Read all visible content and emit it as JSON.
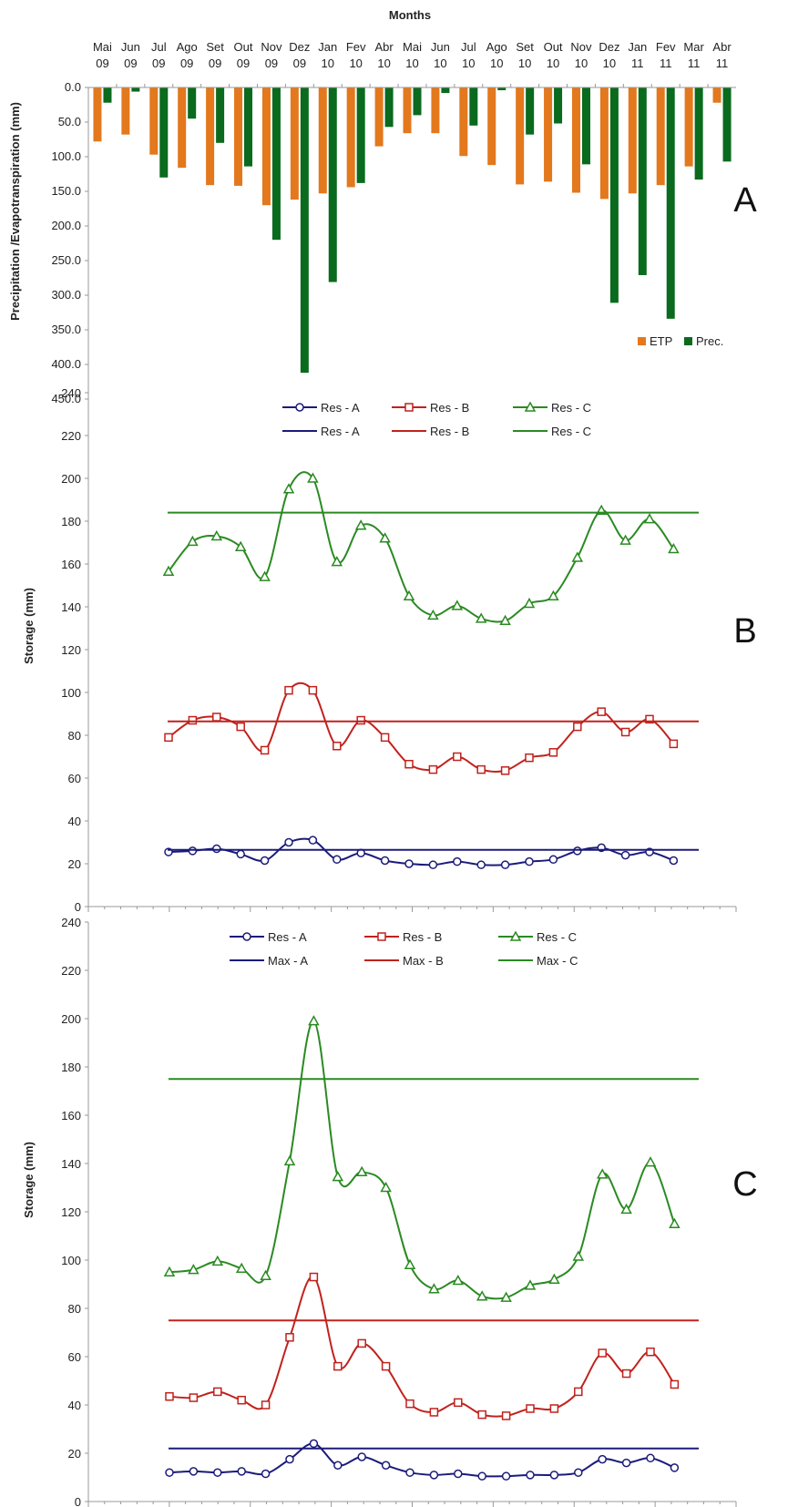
{
  "colors": {
    "etp": "#e3781d",
    "prec": "#0a6a1e",
    "resA": "#1b1b7a",
    "resB": "#c0221d",
    "resC": "#2a8a22",
    "axis": "#999999"
  },
  "chart_data": [
    {
      "type": "bar",
      "panel_label": "A",
      "title": "Months",
      "ylabel": "Precipitation /Evapotranspiration (mm)",
      "ylim": [
        0,
        450
      ],
      "y_inverted": true,
      "y_ticks": [
        "0.0",
        "50.0",
        "100.0",
        "150.0",
        "200.0",
        "250.0",
        "300.0",
        "350.0",
        "400.0",
        "450.0"
      ],
      "x_axis_position": "top",
      "categories": [
        "Mai 09",
        "Jun 09",
        "Jul 09",
        "Ago 09",
        "Set 09",
        "Out 09",
        "Nov 09",
        "Dez 09",
        "Jan 10",
        "Fev 10",
        "Abr 10",
        "Mai 10",
        "Jun 10",
        "Jul 10",
        "Ago 10",
        "Set 10",
        "Out 10",
        "Nov 10",
        "Dez 10",
        "Jan 11",
        "Fev 11",
        "Mar 11",
        "Abr 11"
      ],
      "category_lines": [
        [
          "Mai",
          "09"
        ],
        [
          "Jun",
          "09"
        ],
        [
          "Jul",
          "09"
        ],
        [
          "Ago",
          "09"
        ],
        [
          "Set",
          "09"
        ],
        [
          "Out",
          "09"
        ],
        [
          "Nov",
          "09"
        ],
        [
          "Dez",
          "09"
        ],
        [
          "Jan",
          "10"
        ],
        [
          "Fev",
          "10"
        ],
        [
          "Abr",
          "10"
        ],
        [
          "Mai",
          "10"
        ],
        [
          "Jun",
          "10"
        ],
        [
          "Jul",
          "10"
        ],
        [
          "Ago",
          "10"
        ],
        [
          "Set",
          "10"
        ],
        [
          "Out",
          "10"
        ],
        [
          "Nov",
          "10"
        ],
        [
          "Dez",
          "10"
        ],
        [
          "Jan",
          "11"
        ],
        [
          "Fev",
          "11"
        ],
        [
          "Mar",
          "11"
        ],
        [
          "Abr",
          "11"
        ]
      ],
      "series": [
        {
          "name": "ETP",
          "values": [
            78,
            68,
            97,
            116,
            141,
            142,
            170,
            162,
            153,
            144,
            85,
            66,
            66,
            99,
            112,
            140,
            136,
            152,
            161,
            153,
            141,
            114,
            22
          ]
        },
        {
          "name": "Prec.",
          "values": [
            22,
            6,
            130,
            45,
            80,
            114,
            220,
            412,
            281,
            138,
            57,
            40,
            8,
            55,
            4,
            68,
            52,
            111,
            311,
            271,
            334,
            133,
            107
          ]
        }
      ],
      "legend": "bottom-right",
      "grid": false
    },
    {
      "type": "line",
      "panel_label": "B",
      "ylabel": "Storage (mm)",
      "ylim": [
        0,
        240
      ],
      "y_ticks": [
        "0",
        "20",
        "40",
        "60",
        "80",
        "100",
        "120",
        "140",
        "160",
        "180",
        "200",
        "220",
        "240"
      ],
      "series": [
        {
          "name": "Res - A",
          "values": [
            25.5,
            26,
            27,
            24.5,
            21.5,
            30,
            31,
            22,
            25,
            21.5,
            20,
            19.5,
            21,
            19.5,
            19.5,
            21,
            22,
            26,
            27.5,
            24,
            25.5,
            21.5
          ]
        },
        {
          "name": "Res - B",
          "values": [
            79,
            87,
            88.5,
            84,
            73,
            101,
            101,
            75,
            87,
            79,
            66.5,
            64,
            70,
            64,
            63.5,
            69.5,
            72,
            84,
            91,
            81.5,
            87.5,
            76
          ]
        },
        {
          "name": "Res - C",
          "values": [
            156.5,
            170.5,
            173,
            168,
            154,
            195,
            200,
            161,
            178,
            172,
            145,
            136,
            140.5,
            134.5,
            133.5,
            141.5,
            145,
            163,
            185,
            171,
            181,
            167
          ]
        },
        {
          "name": "Res - A",
          "constant": 26.5
        },
        {
          "name": "Res - B",
          "constant": 86.5
        },
        {
          "name": "Res - C",
          "constant": 184
        }
      ],
      "legend": "top",
      "grid": false
    },
    {
      "type": "line",
      "panel_label": "C",
      "ylabel": "Storage (mm)",
      "ylim": [
        0,
        240
      ],
      "y_ticks": [
        "0",
        "20",
        "40",
        "60",
        "80",
        "100",
        "120",
        "140",
        "160",
        "180",
        "200",
        "220",
        "240"
      ],
      "series": [
        {
          "name": "Res - A",
          "values": [
            12,
            12.5,
            12,
            12.5,
            11.5,
            17.5,
            24,
            15,
            18.5,
            15,
            12,
            11,
            11.5,
            10.5,
            10.5,
            11,
            11,
            12,
            17.5,
            16,
            18,
            14
          ]
        },
        {
          "name": "Res - B",
          "values": [
            43.5,
            43,
            45.5,
            42,
            40,
            68,
            93,
            56,
            65.5,
            56,
            40.5,
            37,
            41,
            36,
            35.5,
            38.5,
            38.5,
            45.5,
            61.5,
            53,
            62,
            48.5
          ]
        },
        {
          "name": "Res - C",
          "values": [
            95,
            96,
            99.5,
            96.5,
            93.5,
            141,
            199,
            134.5,
            136.5,
            130,
            98,
            88,
            91.5,
            85,
            84.5,
            89.5,
            92,
            101.5,
            135.5,
            121,
            140.5,
            115
          ]
        },
        {
          "name": "Max - A",
          "constant": 22
        },
        {
          "name": "Max - B",
          "constant": 75
        },
        {
          "name": "Max - C",
          "constant": 175
        }
      ],
      "legend": "top",
      "grid": false
    }
  ]
}
